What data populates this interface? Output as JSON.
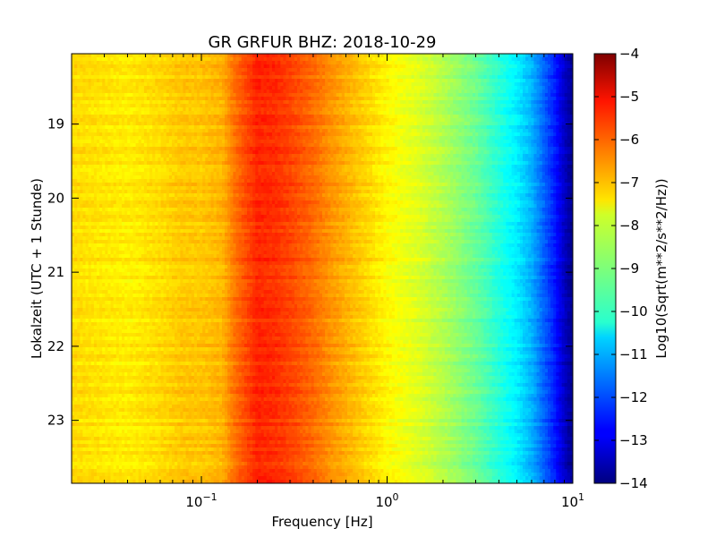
{
  "chart_data": {
    "type": "heatmap",
    "title": "GR GRFUR BHZ: 2018-10-29",
    "xlabel": "Frequency [Hz]",
    "ylabel": "Lokalzeit (UTC + 1 Stunde)",
    "x_scale": "log",
    "xlim": [
      0.02,
      10
    ],
    "x_ticks": [
      {
        "value": 0.1,
        "base": "10",
        "exp": "−1"
      },
      {
        "value": 1,
        "base": "10",
        "exp": "0"
      },
      {
        "value": 10,
        "base": "10",
        "exp": "1"
      }
    ],
    "ylim": [
      18.05,
      23.85
    ],
    "y_ticks": [
      19,
      20,
      21,
      22,
      23
    ],
    "y_tick_labels": [
      "19",
      "20",
      "21",
      "22",
      "23"
    ],
    "colorbar": {
      "label": "Log10(Sqrt(m**2/s**2/Hz))",
      "range": [
        -14,
        -4
      ],
      "ticks": [
        -4,
        -5,
        -6,
        -7,
        -8,
        -9,
        -10,
        -11,
        -12,
        -13,
        -14
      ],
      "tick_labels": [
        "−4",
        "−5",
        "−6",
        "−7",
        "−8",
        "−9",
        "−10",
        "−11",
        "−12",
        "−13",
        "−14"
      ],
      "colormap": "jet"
    },
    "spectrum_profile": {
      "frequency_hz": [
        0.02,
        0.04,
        0.06,
        0.08,
        0.1,
        0.13,
        0.15,
        0.2,
        0.25,
        0.3,
        0.4,
        0.5,
        0.7,
        1.0,
        1.5,
        2.0,
        3.0,
        4.0,
        5.0,
        6.0,
        7.0,
        8.0,
        9.0,
        10.0
      ],
      "psd_log10": [
        -7.4,
        -7.6,
        -7.4,
        -7.2,
        -7.2,
        -7.0,
        -6.4,
        -5.6,
        -5.7,
        -5.9,
        -6.3,
        -6.7,
        -7.2,
        -7.7,
        -8.1,
        -8.5,
        -9.2,
        -9.9,
        -10.4,
        -11.0,
        -11.8,
        -12.5,
        -13.3,
        -13.9
      ]
    }
  }
}
